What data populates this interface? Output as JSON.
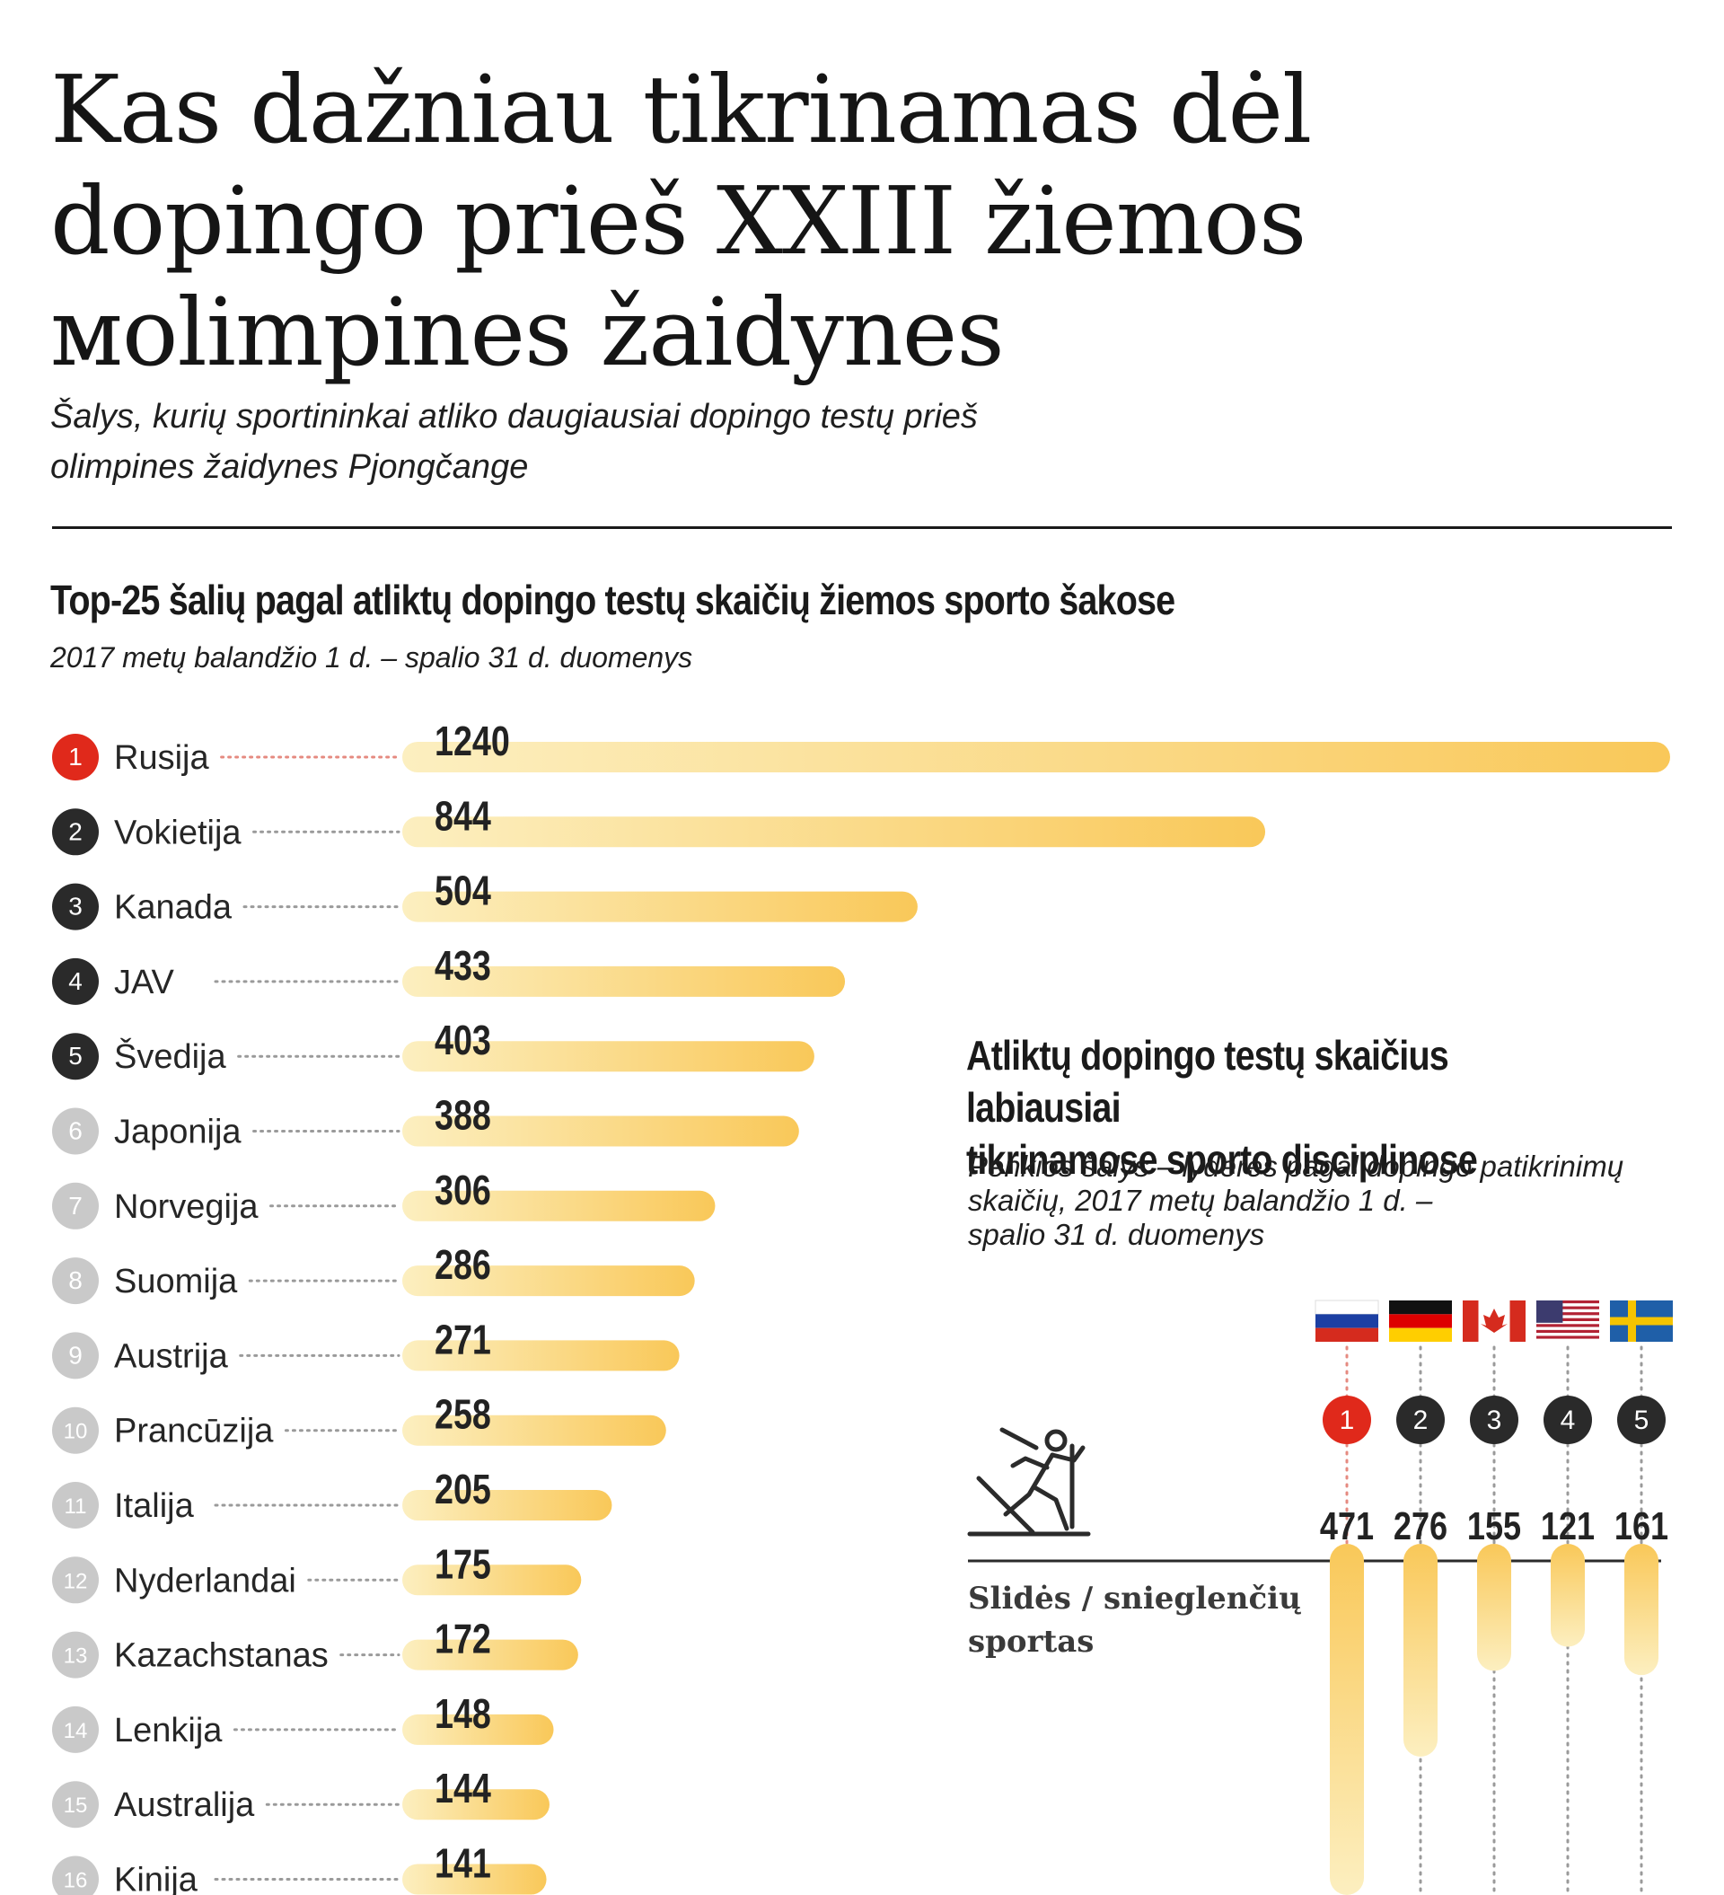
{
  "title_lines": [
    "Kas dažniau tikrinamas dėl",
    "dopingo prieš XXIII žiemos",
    "мolimpines žaidynes"
  ],
  "subtitle_lines": [
    "Šalys, kurių sportininkai atliko daugiausiai dopingo testų prieš",
    "olimpines žaidynes Pjongčange"
  ],
  "colors": {
    "bar_from": "#fcefc0",
    "bar_to": "#f9c859",
    "rank_first": "#e0291b",
    "rank_top5": "#2a2a2a",
    "rank_other": "#c9c9c9",
    "leader_dots": "#9a9a9a",
    "leader_dots_first": "#e58a80"
  },
  "chart_data": [
    {
      "type": "bar",
      "orientation": "horizontal",
      "title": "Top-25 šalių pagal atliktų dopingo testų skaičių žiemos sporto šakose",
      "note": "2017 metų balandžio 1 d. – spalio 31 d. duomenys",
      "categories": [
        "Rusija",
        "Vokietija",
        "Kanada",
        "JAV",
        "Švedija",
        "Japonija",
        "Norvegija",
        "Suomija",
        "Austrija",
        "Prancūzija",
        "Italija",
        "Nyderlandai",
        "Kazachstanas",
        "Lenkija",
        "Australija",
        "Kinija"
      ],
      "ranks": [
        "1",
        "2",
        "3",
        "4",
        "5",
        "6",
        "7",
        "8",
        "9",
        "10",
        "11",
        "12",
        "13",
        "14",
        "15",
        "16"
      ],
      "values": [
        1240,
        844,
        504,
        433,
        403,
        388,
        306,
        286,
        271,
        258,
        205,
        175,
        172,
        148,
        144,
        141
      ],
      "value_labels": [
        "1240",
        "844",
        "504",
        "433",
        "403",
        "388",
        "306",
        "286",
        "271",
        "258",
        "205",
        "175",
        "172",
        "148",
        "144",
        "141"
      ],
      "xlim": [
        0,
        1240
      ]
    },
    {
      "type": "bar",
      "orientation": "vertical",
      "title_lines": [
        "Atliktų dopingo testų skaičius labiausiai",
        "tikrinamose sporto disciplinose"
      ],
      "note_lines": [
        "Penkios šalys – lyderės pagal dopingo patikrinimų",
        "skaičių, 2017 metų balandžio 1 d. –",
        "spalio 31 d. duomenys"
      ],
      "sport_label_lines": [
        "Slidės / snieglenčių",
        "sportas"
      ],
      "sport_icon": "skier-icon",
      "countries": [
        {
          "rank": "1",
          "flag": "russia-flag",
          "value": 471,
          "label": "471"
        },
        {
          "rank": "2",
          "flag": "germany-flag",
          "value": 276,
          "label": "276"
        },
        {
          "rank": "3",
          "flag": "canada-flag",
          "value": 155,
          "label": "155"
        },
        {
          "rank": "4",
          "flag": "usa-flag",
          "value": 121,
          "label": "121"
        },
        {
          "rank": "5",
          "flag": "sweden-flag",
          "value": 161,
          "label": "161"
        }
      ]
    }
  ]
}
